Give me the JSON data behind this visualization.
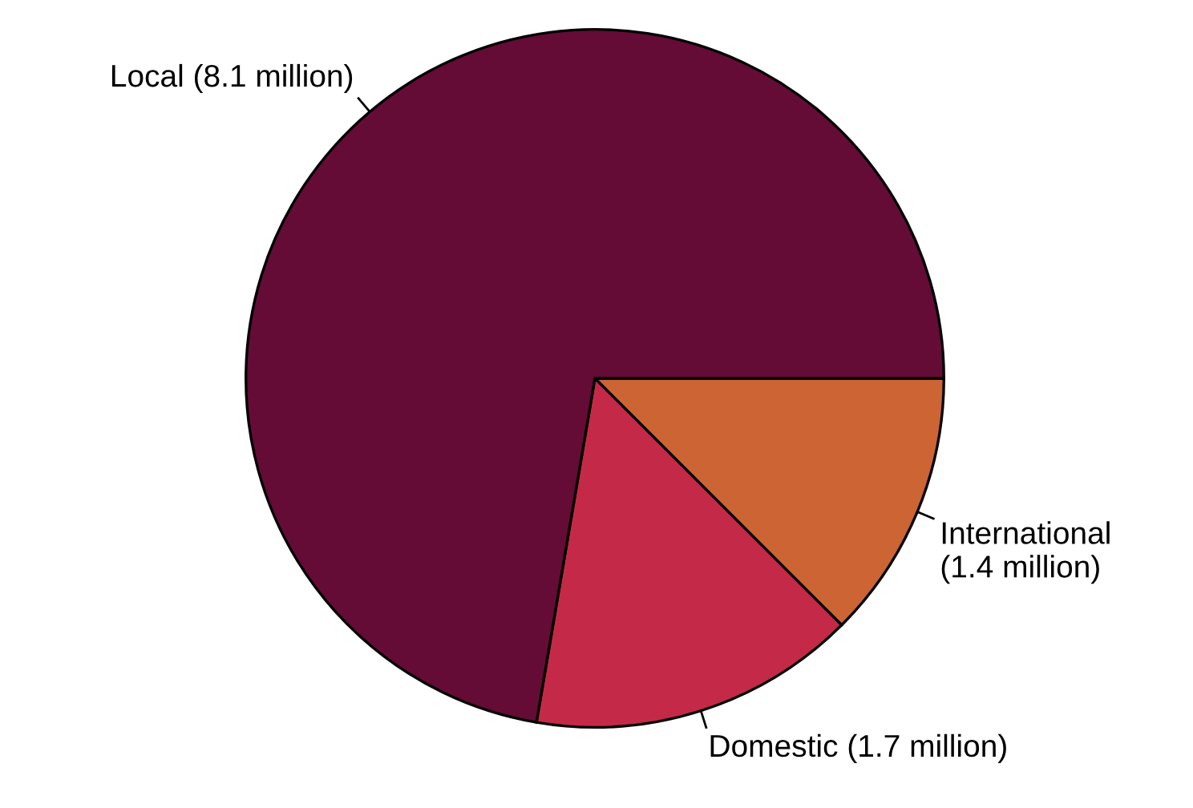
{
  "chart_data": {
    "type": "pie",
    "categories": [
      "International\n(1.4 million)",
      "Domestic (1.7 million)",
      "Local (8.1 million)"
    ],
    "values": [
      1.4,
      1.7,
      8.1
    ],
    "colors": [
      "#cc6433",
      "#c42a47",
      "#640c35"
    ]
  }
}
